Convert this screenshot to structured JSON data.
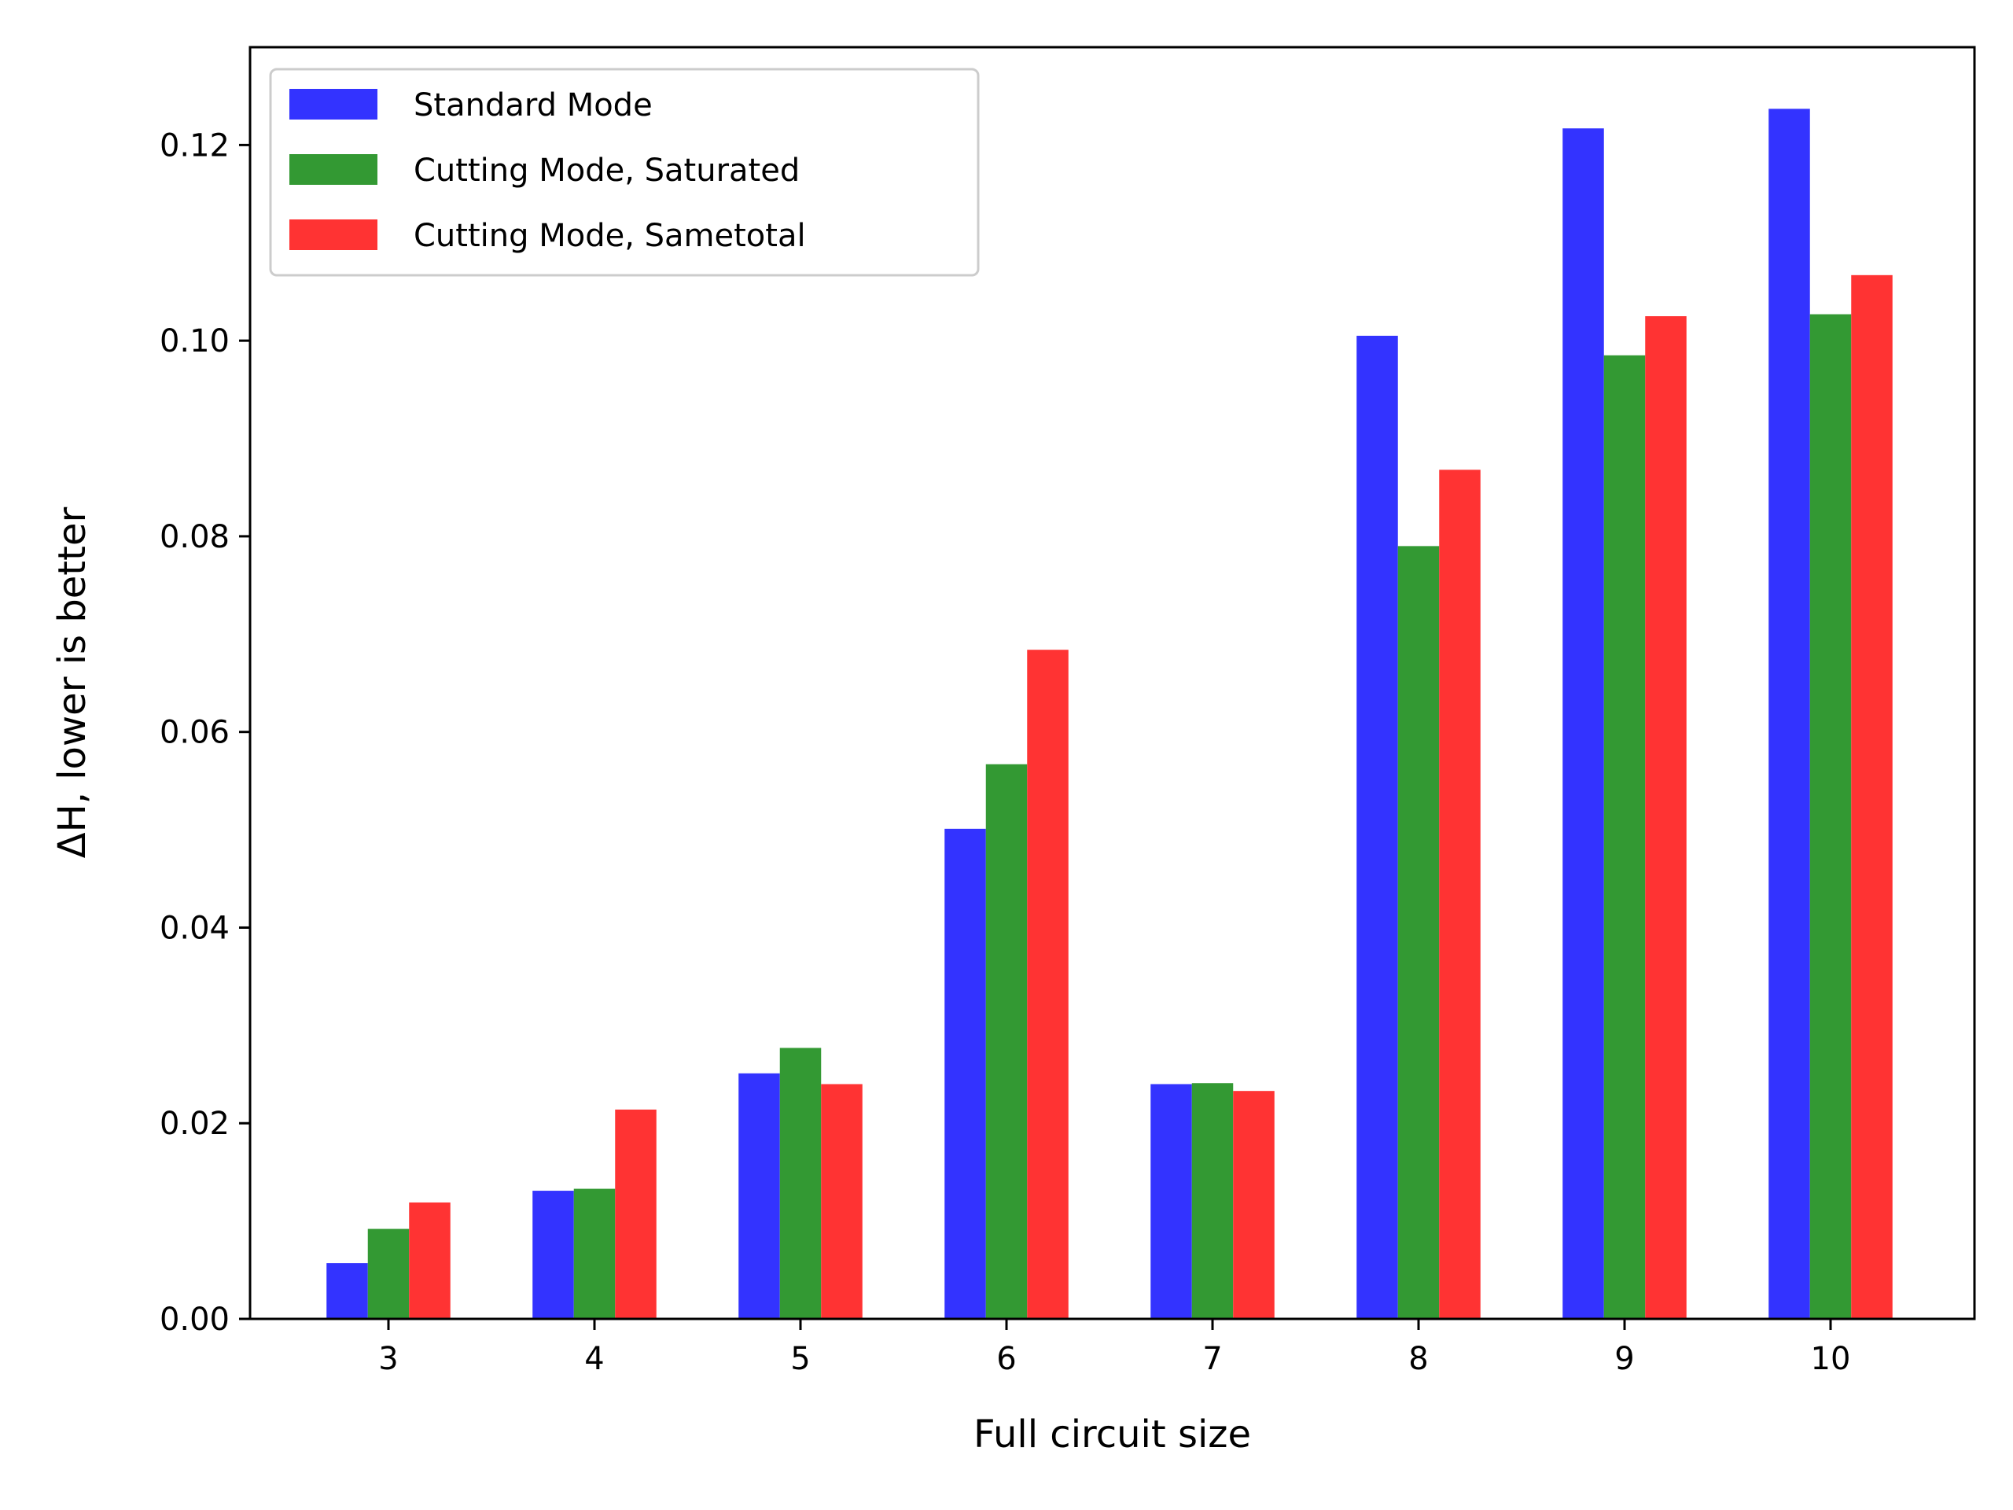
{
  "chart_data": {
    "type": "bar",
    "title": "",
    "xlabel": "Full circuit size",
    "ylabel": "ΔH, lower is better",
    "categories": [
      "3",
      "4",
      "5",
      "6",
      "7",
      "8",
      "9",
      "10"
    ],
    "ylim": [
      0,
      0.13
    ],
    "yticks": [
      "0.00",
      "0.02",
      "0.04",
      "0.06",
      "0.08",
      "0.10",
      "0.12"
    ],
    "legend_position": "top-left",
    "grid": false,
    "series": [
      {
        "name": "Standard Mode",
        "color": "#3333ff",
        "values": [
          0.0057,
          0.0131,
          0.0251,
          0.0501,
          0.024,
          0.1005,
          0.1217,
          0.1237
        ]
      },
      {
        "name": "Cutting Mode, Saturated",
        "color": "#339933",
        "values": [
          0.0092,
          0.0133,
          0.0277,
          0.0567,
          0.0241,
          0.079,
          0.0985,
          0.1027
        ]
      },
      {
        "name": "Cutting Mode, Sametotal",
        "color": "#ff3333",
        "values": [
          0.0119,
          0.0214,
          0.024,
          0.0684,
          0.0233,
          0.0868,
          0.1025,
          0.1067
        ]
      }
    ]
  }
}
